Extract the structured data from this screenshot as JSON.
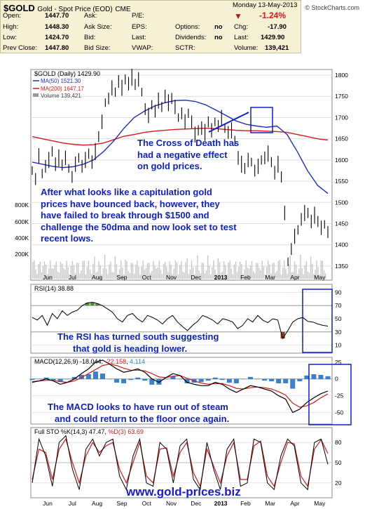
{
  "header": {
    "symbol": "$GOLD",
    "name": "Gold - Spot Price (EOD)",
    "exchange": "CME",
    "brand": "© StockCharts.com",
    "date": "Monday 13-May-2013"
  },
  "quote": {
    "open_label": "Open:",
    "open": "1447.70",
    "high_label": "High:",
    "high": "1448.30",
    "low_label": "Low:",
    "low": "1424.70",
    "prev_label": "Prev Close:",
    "prev": "1447.80",
    "ask_label": "Ask:",
    "asksize_label": "Ask Size:",
    "bid_label": "Bid:",
    "bidsize_label": "Bid Size:",
    "pe_label": "P/E:",
    "eps_label": "EPS:",
    "last_label": "Last:",
    "vwap_label": "VWAP:",
    "options_label": "Options:",
    "options": "no",
    "dividends_label": "Dividends:",
    "dividends": "no",
    "sctr_label": "SCTR:",
    "pct": "-1.24%",
    "chg_label": "Chg:",
    "chg": "-17.90",
    "last2_label": "Last:",
    "last": "1429.90",
    "volume_label": "Volume:",
    "volume": "139,421"
  },
  "annotations": {
    "cross_line1": "The Cross of Death has",
    "cross_line2": "had a negative effect",
    "cross_line3": "on gold prices.",
    "cap_line1": "After what looks like a capitulation gold",
    "cap_line2": "prices have bounced back, however, they",
    "cap_line3": "have failed to break through $1500 and",
    "cap_line4": "challenge the 50dma and now look set to test",
    "cap_line5": "recent lows.",
    "rsi_line1": "The RSI has turned south suggesting",
    "rsi_line2": "that gold is heading lower.",
    "macd_line1": "The MACD looks to have run out of steam",
    "macd_line2": "and could return to the floor once again.",
    "url": "www.gold-prices.biz"
  },
  "colors": {
    "price": "#000000",
    "ma50": "#1f2fbf",
    "ma200": "#d41a1a",
    "annotation": "#0b1fd0",
    "panel_bg": "#f6f0d5",
    "rsi_fill_high": "#5c8a3a",
    "rsi_fill_low": "#8b4513",
    "macd_hist": "#3a7fd0",
    "sto_d": "#d41a1a"
  },
  "chart_data": [
    {
      "type": "line",
      "panel": "price",
      "title": "$GOLD (Daily) 1429.90",
      "legend_position": "top-left",
      "ylim": [
        1320,
        1810
      ],
      "y_ticks": [
        1350,
        1400,
        1450,
        1500,
        1550,
        1600,
        1650,
        1700,
        1750,
        1800
      ],
      "volume_ticks": [
        "200K",
        "400K",
        "600K",
        "800K"
      ],
      "x_labels": [
        "Jun",
        "Jul",
        "Aug",
        "Sep",
        "Oct",
        "Nov",
        "Dec",
        "2013",
        "Feb",
        "Mar",
        "Apr",
        "May"
      ],
      "series": [
        {
          "name": "$GOLD (Daily) 1429.90",
          "color": "#000000",
          "values": [
            1575,
            1555,
            1610,
            1568,
            1585,
            1600,
            1620,
            1590,
            1605,
            1588,
            1605,
            1580,
            1560,
            1590,
            1605,
            1585,
            1600,
            1615,
            1595,
            1620,
            1655,
            1690,
            1735,
            1745,
            1770,
            1760,
            1785,
            1770,
            1790,
            1780,
            1795,
            1778,
            1790,
            1760,
            1720,
            1705,
            1730,
            1715,
            1740,
            1725,
            1750,
            1735,
            1745,
            1725,
            1700,
            1710,
            1690,
            1710,
            1690,
            1660,
            1670,
            1675,
            1665,
            1690,
            1670,
            1690,
            1680,
            1700,
            1675,
            1665,
            1670,
            1645,
            1605,
            1590,
            1580,
            1600,
            1595,
            1575,
            1585,
            1600,
            1605,
            1615,
            1595,
            1570,
            1590,
            1560,
            1475,
            1360,
            1390,
            1420,
            1435,
            1460,
            1475,
            1475,
            1455,
            1470,
            1455,
            1440,
            1448,
            1430
          ]
        },
        {
          "name": "MA(50) 1521.30",
          "color": "#1f2fbf",
          "values": [
            1595,
            1590,
            1585,
            1582,
            1584,
            1590,
            1600,
            1620,
            1645,
            1675,
            1700,
            1715,
            1727,
            1735,
            1740,
            1741,
            1738,
            1730,
            1718,
            1705,
            1692,
            1684,
            1680,
            1677,
            1680,
            1660,
            1620,
            1575,
            1540,
            1521
          ]
        },
        {
          "name": "MA(200) 1647.17",
          "color": "#d41a1a",
          "values": [
            1655,
            1650,
            1645,
            1640,
            1637,
            1635,
            1636,
            1640,
            1648,
            1656,
            1660,
            1665,
            1668,
            1670,
            1672,
            1673,
            1674,
            1675,
            1674,
            1672,
            1670,
            1669,
            1669,
            1668,
            1667,
            1665,
            1660,
            1655,
            1650,
            1647
          ]
        },
        {
          "name": "Volume 139,421",
          "color": "#888888"
        }
      ]
    },
    {
      "type": "line",
      "panel": "rsi",
      "title": "RSI(14) 38.88",
      "ylim": [
        0,
        100
      ],
      "y_ticks": [
        10,
        30,
        50,
        70,
        90
      ],
      "series": [
        {
          "name": "RSI(14) 38.88",
          "color": "#000000",
          "values": [
            52,
            48,
            55,
            40,
            58,
            50,
            62,
            55,
            60,
            63,
            70,
            74,
            75,
            73,
            70,
            65,
            60,
            50,
            45,
            55,
            58,
            50,
            45,
            55,
            52,
            48,
            42,
            50,
            55,
            45,
            38,
            32,
            40,
            46,
            55,
            52,
            48,
            42,
            50,
            48,
            45,
            35,
            40,
            50,
            45,
            55,
            48,
            44,
            50,
            48,
            20,
            32,
            45,
            50,
            52,
            46,
            45,
            42,
            40,
            38.88
          ]
        }
      ]
    },
    {
      "type": "line",
      "panel": "macd",
      "title": "MACD(12,26,9) -18.044, -22.158, 4.114",
      "ylim": [
        -65,
        30
      ],
      "y_ticks": [
        25,
        0,
        -25,
        -50
      ],
      "series": [
        {
          "name": "MACD(12,26,9) -18.044",
          "color": "#000000",
          "values": [
            -5,
            -3,
            0,
            -3,
            -8,
            -5,
            0,
            8,
            15,
            25,
            28,
            22,
            15,
            10,
            12,
            15,
            10,
            0,
            -5,
            2,
            8,
            5,
            -5,
            -8,
            -10,
            -10,
            -5,
            -8,
            -15,
            -20,
            -15,
            -10,
            -12,
            -15,
            -18,
            -25,
            -30,
            -50,
            -45,
            -35,
            -28,
            -22,
            -18.044
          ]
        },
        {
          "name": "-22.158",
          "color": "#d41a1a",
          "values": [
            -4,
            -3,
            -2,
            -2,
            -4,
            -5,
            -3,
            2,
            8,
            14,
            20,
            22,
            20,
            16,
            13,
            13,
            12,
            8,
            3,
            2,
            4,
            5,
            1,
            -3,
            -6,
            -8,
            -7,
            -7,
            -10,
            -14,
            -15,
            -13,
            -12,
            -13,
            -15,
            -19,
            -24,
            -36,
            -42,
            -40,
            -35,
            -28,
            -22.158
          ]
        },
        {
          "name": "4.114",
          "color": "#3a7fd0",
          "values": [
            -1,
            0,
            2,
            -1,
            -4,
            0,
            3,
            6,
            7,
            11,
            8,
            0,
            -5,
            -6,
            -1,
            2,
            -2,
            -8,
            -8,
            0,
            4,
            0,
            -6,
            -5,
            -4,
            -2,
            2,
            -1,
            -5,
            -6,
            0,
            3,
            0,
            -2,
            -3,
            -6,
            -6,
            -14,
            -3,
            5,
            7,
            6,
            4.114
          ]
        }
      ]
    },
    {
      "type": "line",
      "panel": "stochastic",
      "title": "Full STO %K(14,3) %D(3) 47.47, 63.69",
      "ylim": [
        0,
        100
      ],
      "y_ticks": [
        20,
        50,
        80
      ],
      "series": [
        {
          "name": "Full STO %K(14,3) 47.47",
          "color": "#000000",
          "values": [
            20,
            85,
            60,
            15,
            80,
            90,
            40,
            10,
            70,
            85,
            60,
            80,
            85,
            30,
            10,
            60,
            85,
            20,
            15,
            80,
            70,
            20,
            75,
            85,
            25,
            10,
            80,
            40,
            10,
            70,
            85,
            15,
            20,
            85,
            80,
            20,
            10,
            60,
            85,
            75,
            20,
            10,
            80,
            85,
            47.47
          ]
        },
        {
          "name": "%D(3) 63.69",
          "color": "#d41a1a",
          "values": [
            25,
            70,
            65,
            25,
            70,
            85,
            50,
            20,
            60,
            80,
            65,
            75,
            80,
            40,
            20,
            50,
            80,
            30,
            20,
            70,
            72,
            30,
            65,
            80,
            35,
            15,
            70,
            45,
            20,
            60,
            80,
            25,
            25,
            75,
            82,
            30,
            15,
            50,
            80,
            78,
            30,
            15,
            70,
            84,
            63.69
          ]
        }
      ]
    }
  ]
}
